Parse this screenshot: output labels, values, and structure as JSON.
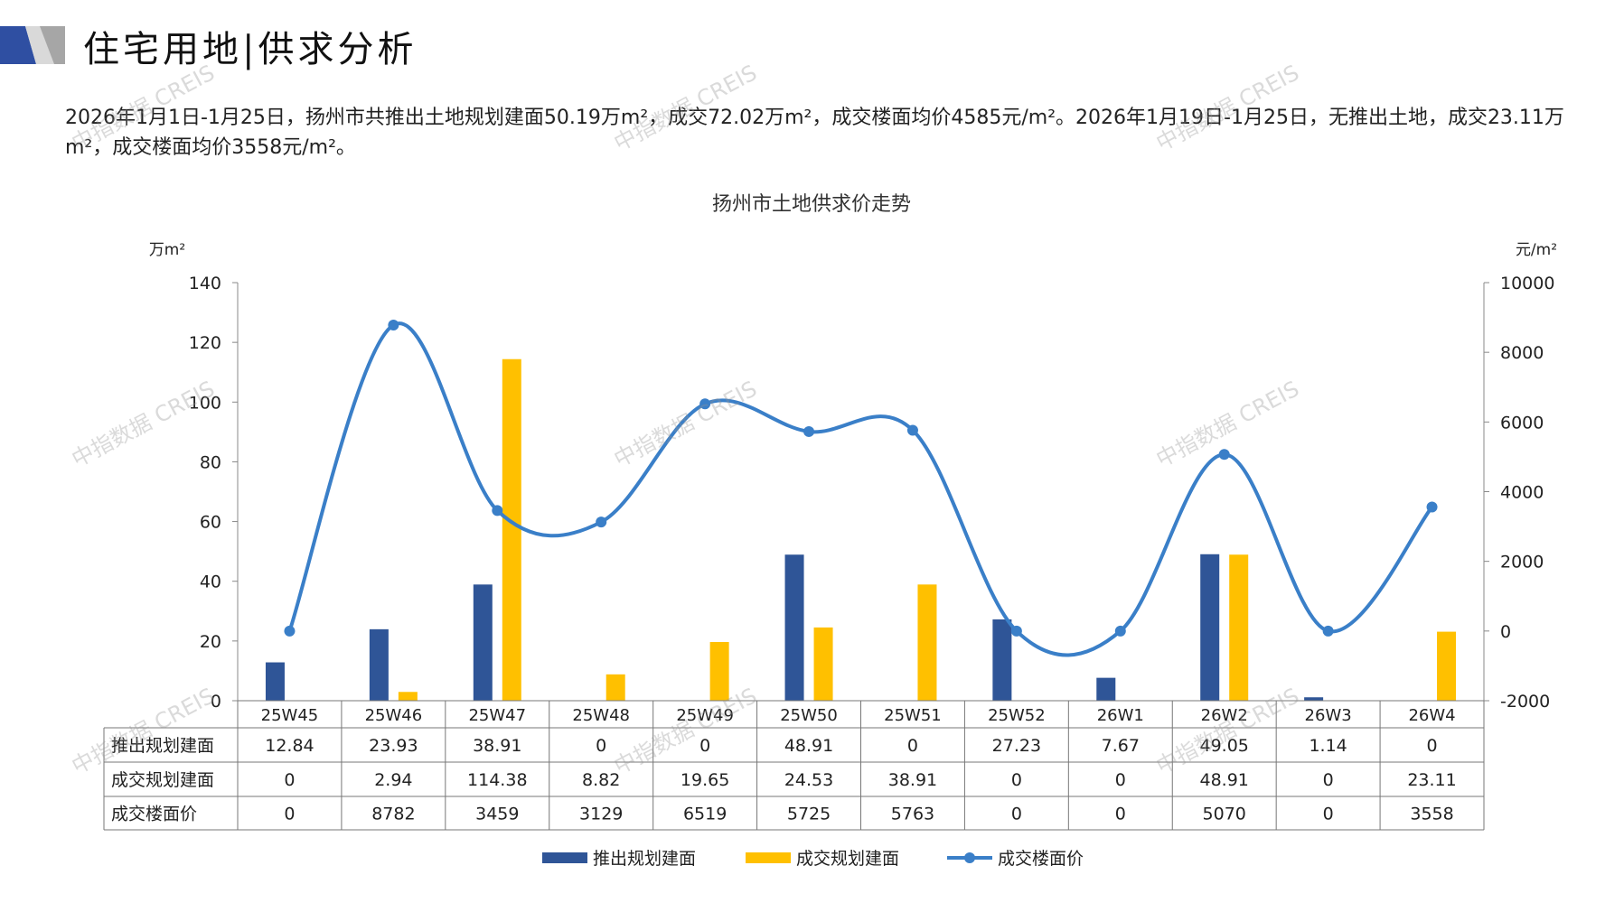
{
  "header": {
    "title": "住宅用地|供求分析"
  },
  "description": "2026年1月1日-1月25日，扬州市共推出土地规划建面50.19万m²，成交72.02万m²，成交楼面均价4585元/m²。2026年1月19日-1月25日，无推出土地，成交23.11万m²，成交楼面均价3558元/m²。",
  "watermark": "中指数据 CREIS",
  "colors": {
    "supply": "#2F5597",
    "deal": "#FFC000",
    "price": "#3A7FC8"
  },
  "chart_data": {
    "type": "bar+line",
    "title": "扬州市土地供求价走势",
    "ylabel_left": "万m²",
    "ylabel_right": "元/m²",
    "ylim_left": [
      0,
      140
    ],
    "yticks_left": [
      0,
      20,
      40,
      60,
      80,
      100,
      120,
      140
    ],
    "ylim_right": [
      -2000,
      10000
    ],
    "yticks_right": [
      -2000,
      0,
      2000,
      4000,
      6000,
      8000,
      10000
    ],
    "categories": [
      "25W45",
      "25W46",
      "25W47",
      "25W48",
      "25W49",
      "25W50",
      "25W51",
      "25W52",
      "26W1",
      "26W2",
      "26W3",
      "26W4"
    ],
    "series": [
      {
        "name": "推出规划建面",
        "type": "bar",
        "axis": "left",
        "values": [
          12.84,
          23.93,
          38.91,
          0,
          0,
          48.91,
          0,
          27.23,
          7.67,
          49.05,
          1.14,
          0
        ],
        "labels": [
          "12.84",
          "23.93",
          "38.91",
          "0",
          "0",
          "48.91",
          "0",
          "27.23",
          "7.67",
          "49.05",
          "1.14",
          "0"
        ]
      },
      {
        "name": "成交规划建面",
        "type": "bar",
        "axis": "left",
        "values": [
          0,
          2.94,
          114.38,
          8.82,
          19.65,
          24.53,
          38.91,
          0,
          0,
          48.91,
          0,
          23.11
        ],
        "labels": [
          "0",
          "2.94",
          "114.38",
          "8.82",
          "19.65",
          "24.53",
          "38.91",
          "0",
          "0",
          "48.91",
          "0",
          "23.11"
        ]
      },
      {
        "name": "成交楼面价",
        "type": "line",
        "axis": "right",
        "values": [
          0,
          8782,
          3459,
          3129,
          6519,
          5725,
          5763,
          0,
          0,
          5070,
          0,
          3558
        ],
        "labels": [
          "0",
          "8782",
          "3459",
          "3129",
          "6519",
          "5725",
          "5763",
          "0",
          "0",
          "5070",
          "0",
          "3558"
        ]
      }
    ],
    "legend": "bottom"
  }
}
